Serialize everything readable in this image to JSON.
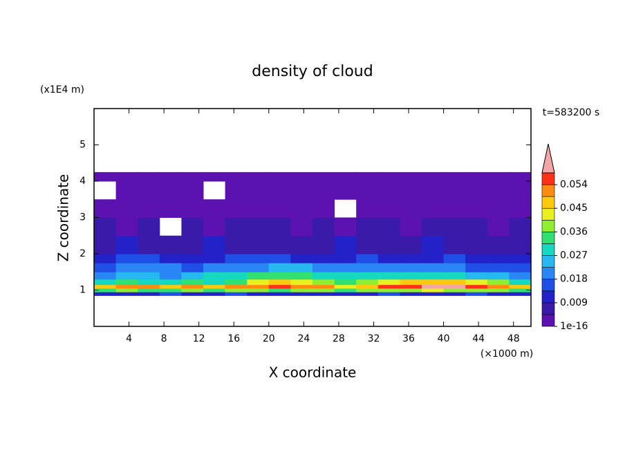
{
  "chart_data": {
    "type": "heatmap",
    "title": "density of cloud",
    "xlabel": "X coordinate",
    "ylabel": "Z coordinate",
    "xunit": "(×1000 m)",
    "yunit": "(x1E4 m)",
    "time_label": "t=583200 s",
    "xlim": [
      0,
      50
    ],
    "xticks": [
      4,
      8,
      12,
      16,
      20,
      24,
      28,
      32,
      36,
      40,
      44,
      48
    ],
    "ylim": [
      0,
      6
    ],
    "yticks": [
      1,
      2,
      3,
      4,
      5
    ],
    "x_edges": [
      0,
      2.5,
      5,
      7.5,
      10,
      12.5,
      15,
      17.5,
      20,
      22.5,
      25,
      27.5,
      30,
      32.5,
      35,
      37.5,
      40,
      42.5,
      45,
      47.5,
      50
    ],
    "z_edges": [
      0.85,
      0.95,
      1.05,
      1.15,
      1.3,
      1.5,
      1.75,
      2.0,
      2.5,
      3.0,
      3.5,
      4.0,
      4.25
    ],
    "z": [
      [
        0.012,
        0.013,
        0.012,
        0.014,
        0.013,
        0.012,
        0.014,
        0.013,
        0.012,
        0.013,
        0.012,
        0.011,
        0.013,
        0.014,
        0.013,
        0.012,
        0.013,
        0.014,
        0.013,
        0.012
      ],
      [
        0.034,
        0.036,
        0.033,
        0.035,
        0.037,
        0.034,
        0.036,
        0.038,
        0.035,
        0.036,
        0.037,
        0.034,
        0.036,
        0.039,
        0.04,
        0.041,
        0.04,
        0.039,
        0.037,
        0.034
      ],
      [
        0.048,
        0.051,
        0.05,
        0.049,
        0.052,
        0.047,
        0.05,
        0.053,
        0.055,
        0.052,
        0.05,
        0.044,
        0.049,
        0.054,
        0.056,
        0.059,
        0.06,
        0.057,
        0.053,
        0.048
      ],
      [
        0.03,
        0.032,
        0.031,
        0.029,
        0.033,
        0.031,
        0.034,
        0.041,
        0.046,
        0.044,
        0.038,
        0.033,
        0.036,
        0.042,
        0.045,
        0.047,
        0.046,
        0.043,
        0.036,
        0.031
      ],
      [
        0.022,
        0.024,
        0.023,
        0.022,
        0.025,
        0.027,
        0.03,
        0.033,
        0.034,
        0.033,
        0.031,
        0.028,
        0.029,
        0.03,
        0.031,
        0.03,
        0.028,
        0.026,
        0.024,
        0.022
      ],
      [
        0.016,
        0.019,
        0.021,
        0.02,
        0.017,
        0.018,
        0.02,
        0.022,
        0.024,
        0.023,
        0.021,
        0.019,
        0.02,
        0.021,
        0.02,
        0.019,
        0.018,
        0.017,
        0.016,
        0.015
      ],
      [
        0.012,
        0.014,
        0.015,
        0.013,
        0.012,
        0.013,
        0.014,
        0.015,
        0.014,
        0.013,
        0.012,
        0.013,
        0.014,
        0.013,
        0.012,
        0.013,
        0.014,
        0.013,
        0.012,
        0.011
      ],
      [
        0.007,
        0.009,
        0.008,
        0.007,
        0.008,
        0.009,
        0.008,
        0.007,
        0.008,
        0.007,
        0.008,
        0.009,
        0.008,
        0.007,
        0.008,
        0.009,
        0.008,
        0.007,
        0.008,
        0.007
      ],
      [
        0.005,
        0.004,
        0.005,
        null,
        0.005,
        0.004,
        0.005,
        0.006,
        0.005,
        0.004,
        0.005,
        0.004,
        0.005,
        0.005,
        0.004,
        0.005,
        0.006,
        0.005,
        0.004,
        0.005
      ],
      [
        0.004,
        0.003,
        0.004,
        0.003,
        0.004,
        0.003,
        0.004,
        0.003,
        0.004,
        0.003,
        0.004,
        null,
        0.002,
        0.004,
        0.003,
        0.004,
        0.003,
        0.004,
        0.003,
        0.004
      ],
      [
        null,
        0.002,
        0.003,
        0.002,
        0.003,
        null,
        0.003,
        0.002,
        0.003,
        0.002,
        0.003,
        0.002,
        0.003,
        0.002,
        0.003,
        0.002,
        0.003,
        0.002,
        0.003,
        0.002
      ],
      [
        0.002,
        0.002,
        0.002,
        0.002,
        0.002,
        0.002,
        0.002,
        0.002,
        0.002,
        0.002,
        0.002,
        0.002,
        0.002,
        0.002,
        0.002,
        0.002,
        0.002,
        0.002,
        0.002,
        0.002
      ]
    ],
    "levels": [
      1e-16,
      0.0045,
      0.009,
      0.0135,
      0.018,
      0.0225,
      0.027,
      0.0315,
      0.036,
      0.0405,
      0.045,
      0.0495,
      0.054,
      0.0585
    ],
    "colors": [
      "#5b12b1",
      "#3a1aa8",
      "#2222c8",
      "#1f4fe6",
      "#2a86f5",
      "#26b8f0",
      "#16d8c0",
      "#30e070",
      "#90ee30",
      "#e8f020",
      "#ffc810",
      "#ff8c10",
      "#ff3018"
    ],
    "extend_color": "#f4a6a6",
    "cticks": [
      1e-16,
      0.009,
      0.018,
      0.027,
      0.036,
      0.045,
      0.054
    ]
  }
}
